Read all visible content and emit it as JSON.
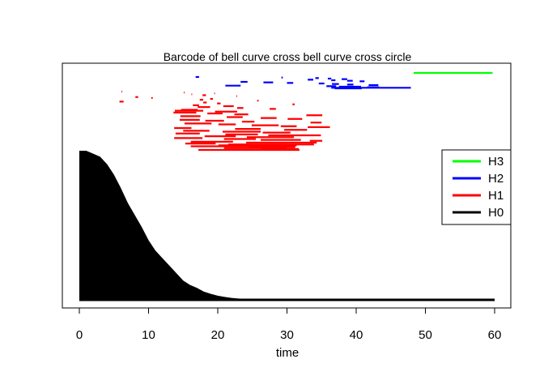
{
  "chart_data": {
    "type": "barcode",
    "title": "Barcode of bell curve cross bell curve cross circle",
    "xlabel": "time",
    "ylabel": "",
    "xlim": [
      0,
      60
    ],
    "xticks": [
      0,
      10,
      20,
      30,
      40,
      50,
      60
    ],
    "grid": false,
    "legend_position": "right",
    "legend": [
      {
        "name": "H3",
        "color": "#00ff00"
      },
      {
        "name": "H2",
        "color": "#0000ff"
      },
      {
        "name": "H1",
        "color": "#ff0000"
      },
      {
        "name": "H0",
        "color": "#000000"
      }
    ],
    "series": [
      {
        "name": "H3",
        "color": "#00ff00",
        "intervals": [
          [
            48.3,
            59.7
          ]
        ]
      },
      {
        "name": "H2",
        "color": "#0000ff",
        "intervals": [
          [
            16.8,
            17.3
          ],
          [
            29.2,
            29.4
          ],
          [
            34.1,
            34.6
          ],
          [
            35.9,
            36.4
          ],
          [
            37.9,
            38.7
          ],
          [
            33.0,
            33.8
          ],
          [
            36.4,
            37.0
          ],
          [
            38.7,
            39.5
          ],
          [
            40.5,
            41.2
          ],
          [
            23.3,
            24.3
          ],
          [
            26.6,
            28.0
          ],
          [
            30.0,
            30.9
          ],
          [
            34.6,
            35.4
          ],
          [
            36.5,
            37.5
          ],
          [
            38.7,
            39.6
          ],
          [
            41.8,
            43.2
          ],
          [
            21.1,
            23.3
          ],
          [
            35.7,
            37.1
          ],
          [
            37.5,
            40.7
          ],
          [
            41.6,
            43.3
          ],
          [
            36.4,
            47.9
          ],
          [
            36.9,
            40.8
          ]
        ]
      },
      {
        "name": "H1",
        "color": "#ff0000",
        "intervals": [
          [
            6.1,
            6.2
          ],
          [
            15.1,
            15.2
          ],
          [
            19.5,
            19.6
          ],
          [
            16.2,
            16.3
          ],
          [
            17.8,
            18.3
          ],
          [
            22.7,
            22.8
          ],
          [
            8.1,
            8.5
          ],
          [
            10.4,
            10.6
          ],
          [
            18.9,
            19.3
          ],
          [
            17.4,
            17.9
          ],
          [
            25.7,
            25.9
          ],
          [
            5.8,
            6.4
          ],
          [
            17.9,
            18.4
          ],
          [
            19.9,
            20.4
          ],
          [
            30.8,
            31.1
          ],
          [
            16.4,
            17.3
          ],
          [
            20.8,
            22.3
          ],
          [
            17.1,
            18.9
          ],
          [
            22.8,
            23.7
          ],
          [
            27.5,
            28.4
          ],
          [
            14.7,
            17.1
          ],
          [
            13.8,
            17.9
          ],
          [
            19.6,
            22.8
          ],
          [
            13.6,
            16.9
          ],
          [
            18.5,
            20.7
          ],
          [
            22.4,
            24.4
          ],
          [
            32.8,
            35.1
          ],
          [
            14.6,
            17.5
          ],
          [
            21.3,
            23.6
          ],
          [
            26.2,
            28.5
          ],
          [
            30.1,
            32.2
          ],
          [
            14.5,
            17.4
          ],
          [
            18.2,
            20.9
          ],
          [
            23.5,
            25.3
          ],
          [
            33.4,
            35.0
          ],
          [
            15.2,
            19.1
          ],
          [
            20.1,
            22.6
          ],
          [
            24.9,
            28.8
          ],
          [
            29.1,
            31.4
          ],
          [
            33.0,
            36.2
          ],
          [
            13.7,
            16.2
          ],
          [
            22.5,
            26.2
          ],
          [
            29.6,
            32.9
          ],
          [
            15.0,
            18.8
          ],
          [
            20.7,
            26.2
          ],
          [
            26.5,
            30.5
          ],
          [
            13.9,
            17.4
          ],
          [
            21.1,
            25.8
          ],
          [
            27.3,
            34.9
          ],
          [
            18.1,
            22.6
          ],
          [
            24.2,
            31.0
          ],
          [
            13.7,
            17.8
          ],
          [
            20.9,
            25.5
          ],
          [
            26.2,
            32.0
          ],
          [
            33.3,
            35.1
          ],
          [
            16.1,
            22.2
          ],
          [
            24.1,
            34.3
          ],
          [
            15.3,
            19.7
          ],
          [
            21.5,
            33.9
          ],
          [
            20.1,
            31.4
          ],
          [
            16.1,
            26.2
          ],
          [
            24.5,
            31.2
          ],
          [
            20.9,
            30.0
          ],
          [
            26.3,
            31.7
          ],
          [
            17.2,
            31.8
          ]
        ]
      },
      {
        "name": "H0",
        "color": "#000000",
        "survival_curve": {
          "x": [
            0,
            1,
            2,
            3,
            4,
            5,
            6,
            7,
            8,
            9,
            10,
            11,
            12,
            13,
            14,
            15,
            16,
            17,
            18,
            19,
            20,
            21,
            22,
            23,
            24,
            25,
            26,
            27,
            28,
            29,
            30,
            35,
            40,
            50,
            60
          ],
          "count": [
            100,
            100,
            98,
            96,
            91,
            84,
            75,
            65,
            57,
            49,
            40,
            33,
            28,
            23,
            18,
            13,
            10,
            8,
            5.5,
            4,
            2.8,
            2,
            1.3,
            0.9,
            0.6,
            0.4,
            0.25,
            0.1,
            0.05,
            0.03,
            0,
            0,
            0,
            0,
            0
          ]
        },
        "persistent_intervals": [
          [
            0,
            60
          ]
        ]
      }
    ]
  }
}
